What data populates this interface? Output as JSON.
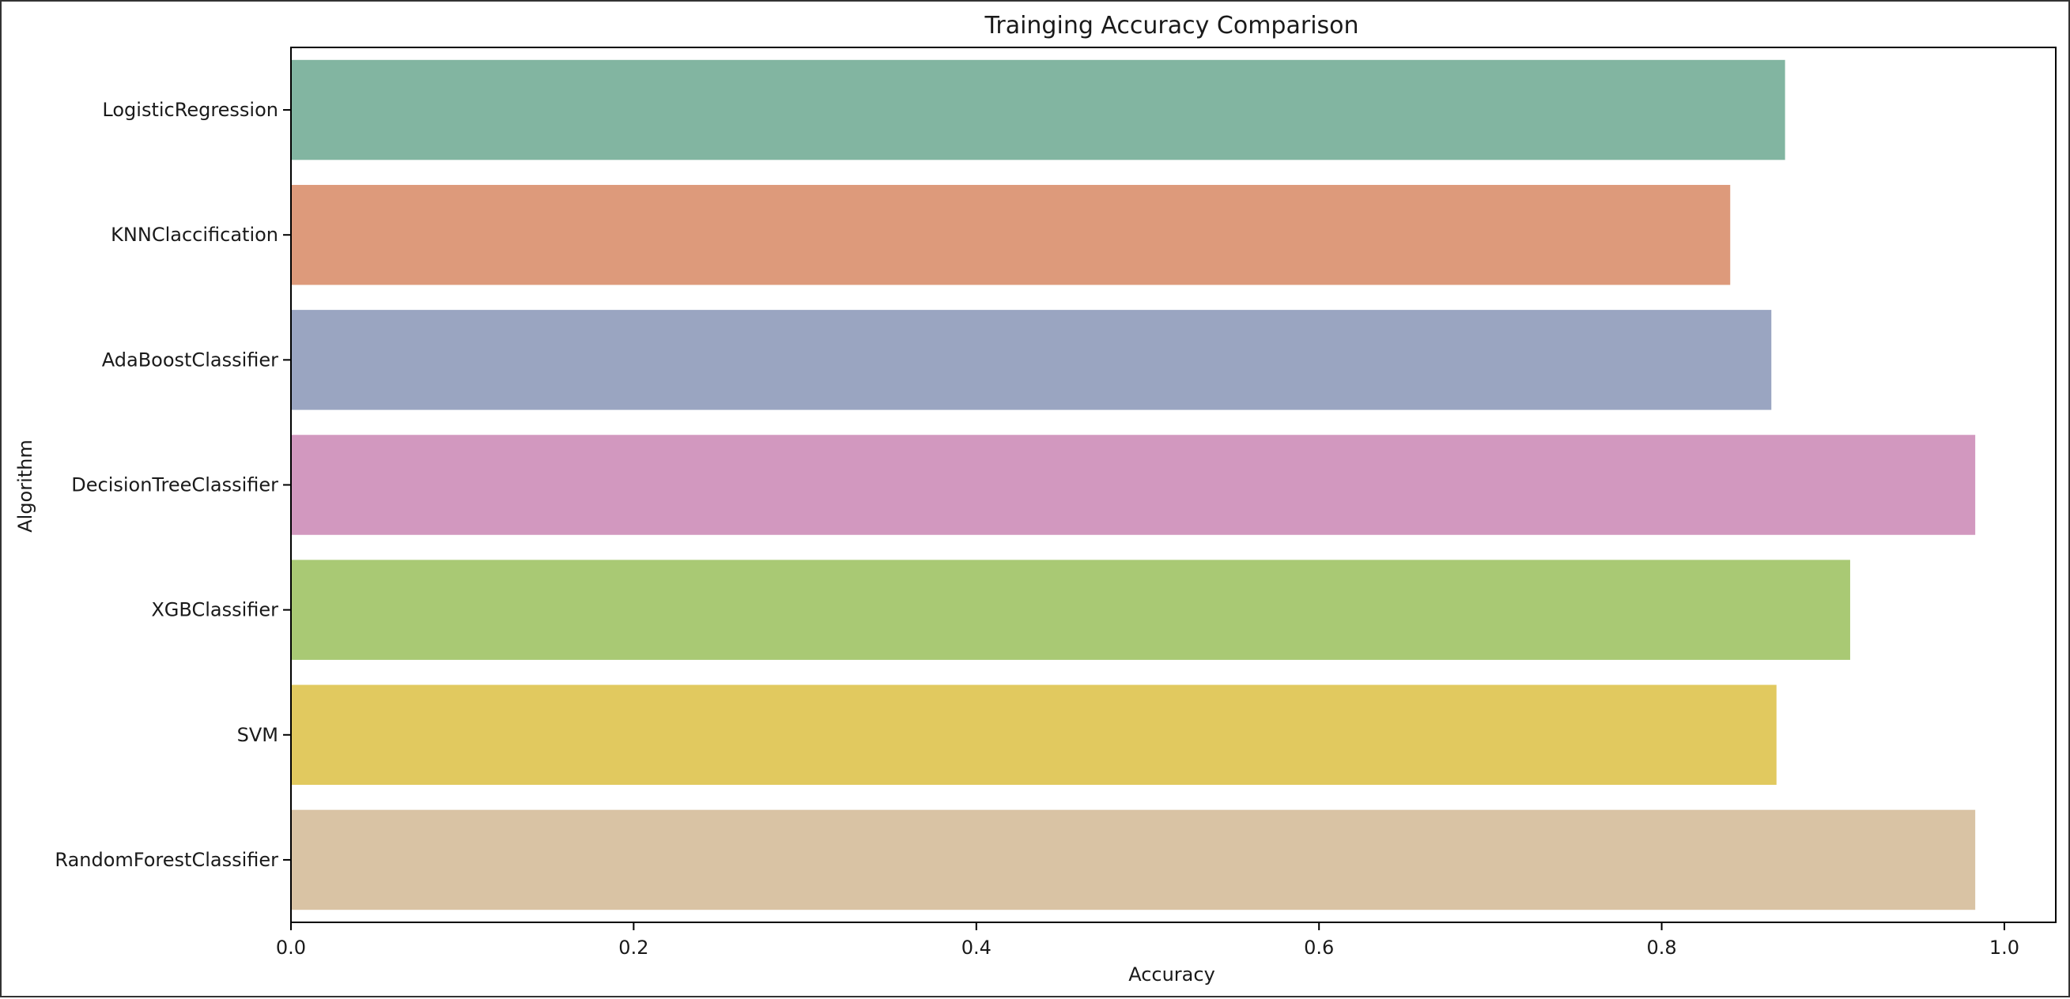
{
  "chart_data": {
    "type": "bar",
    "orientation": "horizontal",
    "title": "Trainging Accuracy Comparison",
    "xlabel": "Accuracy",
    "ylabel": "Algorithm",
    "xlim": [
      0,
      1.03
    ],
    "xticks": [
      0.0,
      0.2,
      0.4,
      0.6,
      0.8,
      1.0
    ],
    "xtick_labels": [
      "0.0",
      "0.2",
      "0.4",
      "0.6",
      "0.8",
      "1.0"
    ],
    "grid": false,
    "legend": "none",
    "categories": [
      "LogisticRegression",
      "KNNClaccification",
      "AdaBoostClassifier",
      "DecisionTreeClassifier",
      "XGBClassifier",
      "SVM",
      "RandomForestClassifier"
    ],
    "values": [
      0.872,
      0.84,
      0.864,
      0.983,
      0.91,
      0.867,
      0.983
    ],
    "colors": [
      "#82b5a1",
      "#dd9a7b",
      "#9aa5c1",
      "#d298bf",
      "#a9c974",
      "#e1c95f",
      "#d9c3a4"
    ]
  }
}
